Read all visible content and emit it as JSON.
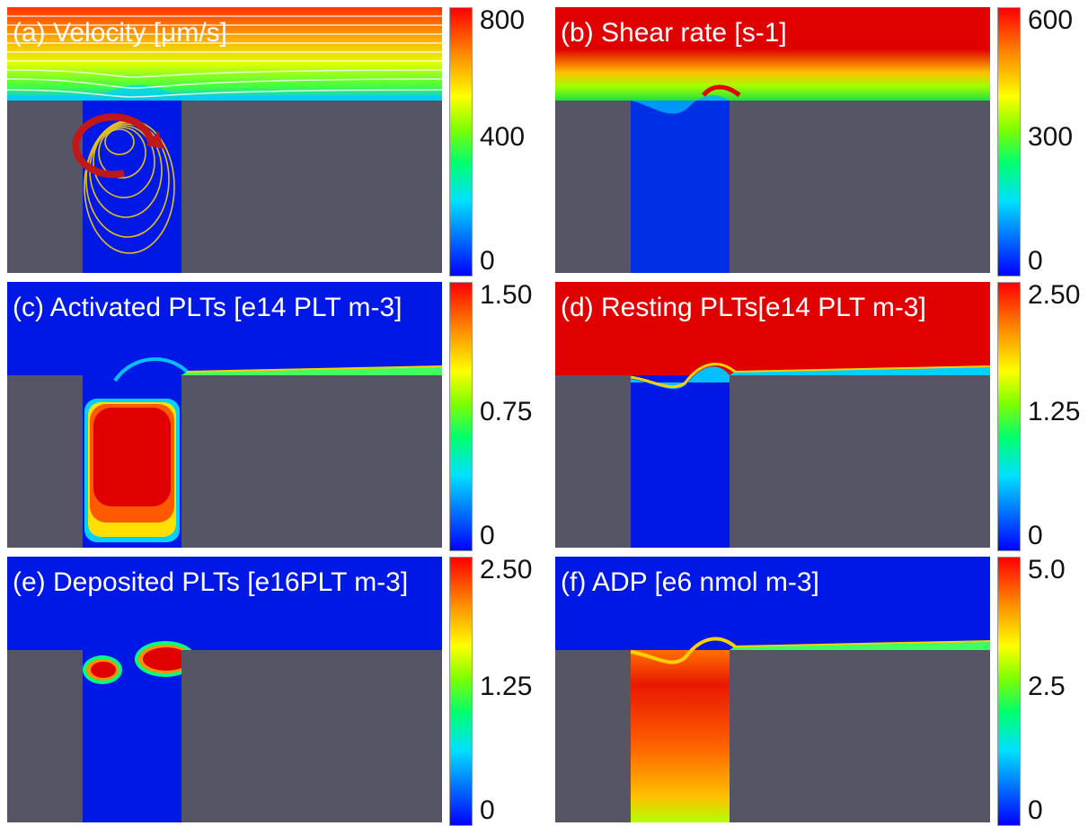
{
  "panels": [
    {
      "id": "a",
      "title": "(a) Velocity [μm/s]",
      "ticks": [
        "800",
        "400",
        "0"
      ]
    },
    {
      "id": "b",
      "title": "(b) Shear rate [s-1]",
      "ticks": [
        "600",
        "300",
        "0"
      ]
    },
    {
      "id": "c",
      "title": "(c) Activated PLTs [e14 PLT m-3]",
      "ticks": [
        "1.50",
        "0.75",
        "0"
      ]
    },
    {
      "id": "d",
      "title": "(d) Resting PLTs[e14 PLT m-3]",
      "ticks": [
        "2.50",
        "1.25",
        "0"
      ]
    },
    {
      "id": "e",
      "title": "(e) Deposited PLTs [e16PLT m-3]",
      "ticks": [
        "2.50",
        "1.25",
        "0"
      ]
    },
    {
      "id": "f",
      "title": "(f) ADP [e6 nmol m-3]",
      "ticks": [
        "5.0",
        "2.5",
        "0"
      ]
    }
  ],
  "colors": {
    "wall": "#555566",
    "low": "#0000e6",
    "high": "#e60000",
    "streamline": "#e0c020"
  }
}
